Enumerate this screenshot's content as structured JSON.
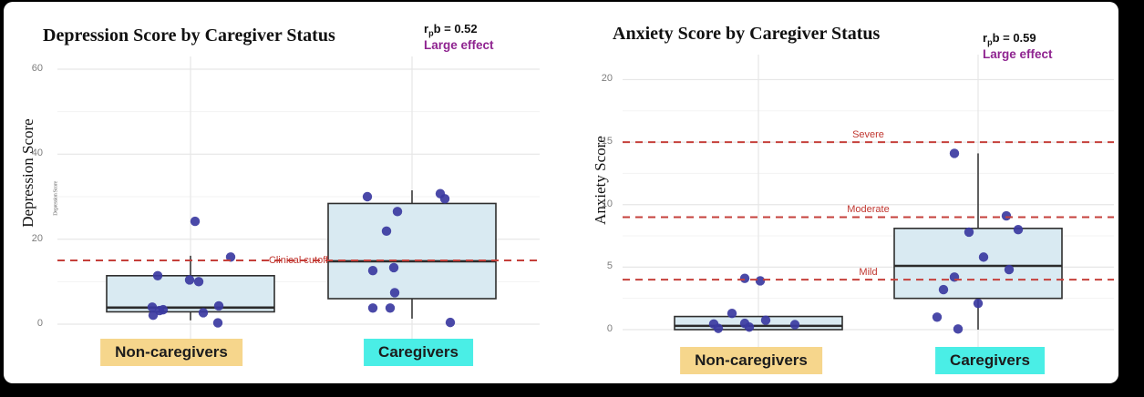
{
  "frame": {
    "background": "#000000",
    "card_background": "#ffffff"
  },
  "palette": {
    "dot": "#3b39a1",
    "box_fill": "#d9eaf2",
    "box_stroke": "#2e2e2e",
    "whisker_stroke": "#3a3a3a",
    "median_stroke": "#2b2b2b",
    "dashed_line": "#c5403b",
    "refline_label_color": "#c0362f",
    "noncaregiver_label_bg": "#f6d68c",
    "caregiver_label_bg": "#4aeee6",
    "effect_label_color": "#8f2490",
    "tick_label_color": "#7d7d7d",
    "grid_major": "#e6e6e6",
    "grid_minor": "#f3f3f3"
  },
  "chart_data": [
    {
      "type": "boxplot",
      "title": "Depression Score by Caregiver Status",
      "ylabel": "Depression Score",
      "ylabel_ghost": "Depression Score",
      "effect": {
        "stat_base": "r",
        "stat_sub": "p",
        "stat_rest": "b = 0.52",
        "label": "Large effect"
      },
      "ylim": [
        0,
        63
      ],
      "yticks": [
        0,
        20,
        40,
        60
      ],
      "yticks_minor": [
        10,
        30,
        50
      ],
      "grid": "on",
      "legend": null,
      "reference_lines": [
        {
          "value": 15,
          "label": "Clinical cutoff",
          "label_placement": "on-line"
        }
      ],
      "categories": [
        "Non-caregivers",
        "Caregivers"
      ],
      "groups": [
        {
          "label": "Non-caregivers",
          "label_bg": "#f6d68c",
          "box": {
            "whisker_low": 0.9,
            "q1": 2.9,
            "median": 3.9,
            "q3": 11.4,
            "whisker_high": 16.1
          },
          "points": [
            [
              5,
              24.2
            ],
            [
              44,
              15.8
            ],
            [
              -36,
              11.4
            ],
            [
              -1,
              10.4
            ],
            [
              9,
              10.0
            ],
            [
              31,
              4.3
            ],
            [
              -42,
              4.0
            ],
            [
              -30,
              3.4
            ],
            [
              -34,
              3.2
            ],
            [
              14,
              2.7
            ],
            [
              -41,
              2.1
            ],
            [
              30,
              0.3
            ]
          ]
        },
        {
          "label": "Caregivers",
          "label_bg": "#4aeee6",
          "box": {
            "whisker_low": 1.3,
            "q1": 6.0,
            "median": 14.8,
            "q3": 28.4,
            "whisker_high": 31.5
          },
          "points": [
            [
              31,
              30.7
            ],
            [
              -49,
              30.0
            ],
            [
              36,
              29.5
            ],
            [
              -16,
              26.5
            ],
            [
              -28,
              21.9
            ],
            [
              -20,
              13.3
            ],
            [
              -43,
              12.6
            ],
            [
              -19,
              7.4
            ],
            [
              -43,
              3.8
            ],
            [
              -24,
              3.8
            ],
            [
              42,
              0.4
            ]
          ]
        }
      ]
    },
    {
      "type": "boxplot",
      "title": "Anxiety Score by Caregiver Status",
      "ylabel": "Anxiety Score",
      "ylabel_ghost": null,
      "effect": {
        "stat_base": "r",
        "stat_sub": "p",
        "stat_rest": "b = 0.59",
        "label": "Large effect"
      },
      "ylim": [
        0,
        22
      ],
      "yticks": [
        0,
        5,
        10,
        15,
        20
      ],
      "yticks_minor": [
        2.5,
        7.5,
        12.5,
        17.5
      ],
      "grid": "on",
      "legend": null,
      "reference_lines": [
        {
          "value": 15,
          "label": "Severe",
          "label_placement": "above-line"
        },
        {
          "value": 9,
          "label": "Moderate",
          "label_placement": "above-line"
        },
        {
          "value": 4,
          "label": "Mild",
          "label_placement": "above-line"
        }
      ],
      "categories": [
        "Non-caregivers",
        "Caregivers"
      ],
      "groups": [
        {
          "label": "Non-caregivers",
          "label_bg": "#f6d68c",
          "box": {
            "whisker_low": 0,
            "q1": 0,
            "median": 0.3,
            "q3": 1.05,
            "whisker_high": 1.05
          },
          "points": [
            [
              -15,
              4.1
            ],
            [
              2,
              3.9
            ],
            [
              -29,
              1.3
            ],
            [
              8,
              0.75
            ],
            [
              -15,
              0.5
            ],
            [
              -49,
              0.45
            ],
            [
              40,
              0.4
            ],
            [
              -10,
              0.2
            ],
            [
              -44,
              0.1
            ]
          ]
        },
        {
          "label": "Caregivers",
          "label_bg": "#4aeee6",
          "box": {
            "whisker_low": 0,
            "q1": 2.5,
            "median": 5.1,
            "q3": 8.1,
            "whisker_high": 14.1
          },
          "points": [
            [
              -26,
              14.1
            ],
            [
              31,
              9.1
            ],
            [
              44,
              8.0
            ],
            [
              -10,
              7.8
            ],
            [
              6,
              5.8
            ],
            [
              34,
              4.8
            ],
            [
              -26,
              4.2
            ],
            [
              -38,
              3.2
            ],
            [
              0,
              2.1
            ],
            [
              -45,
              1.0
            ],
            [
              -22,
              0.05
            ]
          ]
        }
      ]
    }
  ]
}
